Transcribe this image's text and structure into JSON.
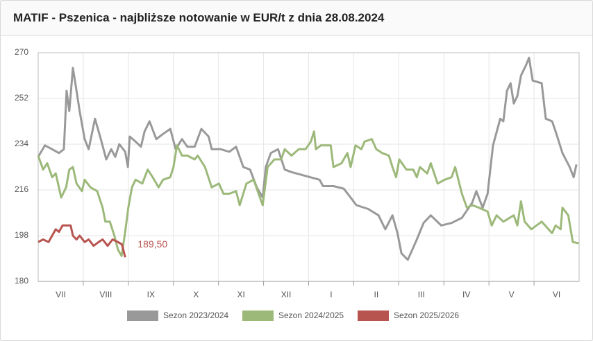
{
  "chart_data": {
    "type": "line",
    "title": "MATIF - Pszenica - najbliższe notowanie w EUR/t z dnia 28.08.2024",
    "xlim": [
      0,
      12
    ],
    "xticks": [
      {
        "value": 0.5,
        "label": "VII"
      },
      {
        "value": 1.5,
        "label": "VIII"
      },
      {
        "value": 2.5,
        "label": "IX"
      },
      {
        "value": 3.5,
        "label": "X"
      },
      {
        "value": 4.5,
        "label": "XI"
      },
      {
        "value": 5.5,
        "label": "XII"
      },
      {
        "value": 6.5,
        "label": "I"
      },
      {
        "value": 7.5,
        "label": "II"
      },
      {
        "value": 8.5,
        "label": "III"
      },
      {
        "value": 9.5,
        "label": "IV"
      },
      {
        "value": 10.5,
        "label": "V"
      },
      {
        "value": 11.5,
        "label": "VI"
      }
    ],
    "ylim": [
      180,
      270
    ],
    "yticks": [
      180,
      198,
      216,
      234,
      252,
      270
    ],
    "grid": true,
    "legend": "bottom",
    "series": [
      {
        "name": "Sezon 2023/2024",
        "color": "#999999",
        "x": [
          0.0,
          0.15,
          0.31,
          0.46,
          0.57,
          0.63,
          0.69,
          0.77,
          0.85,
          0.92,
          1.03,
          1.12,
          1.26,
          1.39,
          1.51,
          1.62,
          1.71,
          1.8,
          1.93,
          1.99,
          2.03,
          2.16,
          2.28,
          2.36,
          2.47,
          2.62,
          2.77,
          2.93,
          3.05,
          3.19,
          3.31,
          3.47,
          3.62,
          3.78,
          3.85,
          4.05,
          4.24,
          4.39,
          4.55,
          4.7,
          4.85,
          4.98,
          5.05,
          5.16,
          5.32,
          5.47,
          5.62,
          5.93,
          6.24,
          6.32,
          6.55,
          6.78,
          6.93,
          7.06,
          7.32,
          7.55,
          7.7,
          7.86,
          7.97,
          8.06,
          8.2,
          8.4,
          8.55,
          8.71,
          8.94,
          9.17,
          9.4,
          9.63,
          9.72,
          9.86,
          9.97,
          10.09,
          10.25,
          10.32,
          10.4,
          10.48,
          10.55,
          10.63,
          10.71,
          10.82,
          10.89,
          10.97,
          11.17,
          11.26,
          11.4,
          11.48,
          11.63,
          11.79,
          11.88,
          11.94
        ],
        "values": [
          229,
          233.5,
          232,
          230.5,
          232,
          255,
          247,
          264,
          255,
          247,
          236,
          232,
          244,
          236,
          228,
          232,
          229,
          234,
          231,
          225,
          237,
          235,
          233,
          239,
          243,
          236,
          238,
          240,
          232,
          236,
          233,
          233,
          240,
          237,
          232,
          232,
          231,
          233,
          225,
          224,
          217,
          213,
          225,
          230.5,
          232,
          224,
          223,
          221.5,
          220,
          217.5,
          217.5,
          216.5,
          213,
          210,
          208.5,
          206,
          200.5,
          206,
          199,
          191,
          188.5,
          196.5,
          203,
          206,
          202,
          203,
          205,
          211,
          215.5,
          209,
          214.5,
          233.5,
          244,
          243,
          255,
          258,
          250,
          253,
          261,
          265,
          268,
          259,
          258,
          244,
          243,
          239,
          230.5,
          225,
          221,
          226
        ]
      },
      {
        "name": "Sezon 2024/2025",
        "color": "#9cb97a",
        "x": [
          0.0,
          0.11,
          0.2,
          0.31,
          0.39,
          0.51,
          0.62,
          0.69,
          0.77,
          0.85,
          0.97,
          1.03,
          1.16,
          1.31,
          1.43,
          1.49,
          1.59,
          1.69,
          1.77,
          1.85,
          1.93,
          2.0,
          2.08,
          2.16,
          2.31,
          2.43,
          2.54,
          2.67,
          2.77,
          2.93,
          3.0,
          3.08,
          3.19,
          3.31,
          3.47,
          3.54,
          3.7,
          3.85,
          4.01,
          4.11,
          4.24,
          4.39,
          4.47,
          4.62,
          4.78,
          4.89,
          4.98,
          5.09,
          5.24,
          5.39,
          5.47,
          5.62,
          5.78,
          5.93,
          6.05,
          6.12,
          6.16,
          6.27,
          6.39,
          6.49,
          6.55,
          6.73,
          6.86,
          6.93,
          7.04,
          7.17,
          7.24,
          7.4,
          7.5,
          7.63,
          7.78,
          7.86,
          7.94,
          8.01,
          8.17,
          8.32,
          8.4,
          8.47,
          8.63,
          8.71,
          8.86,
          9.02,
          9.17,
          9.25,
          9.4,
          9.51,
          9.63,
          9.78,
          9.97,
          10.06,
          10.17,
          10.32,
          10.55,
          10.63,
          10.71,
          10.79,
          10.94,
          11.17,
          11.32,
          11.4,
          11.48,
          11.59,
          11.63,
          11.76,
          11.86,
          11.99
        ],
        "values": [
          229.5,
          224,
          226.5,
          221,
          222.5,
          213,
          217,
          224,
          225,
          218.5,
          215.5,
          220,
          217,
          215.5,
          209,
          203.5,
          203.5,
          198,
          192.5,
          190,
          199.5,
          209,
          217,
          220,
          218.5,
          224,
          221,
          217,
          220,
          221,
          225,
          233.5,
          229.5,
          229.5,
          228,
          229.5,
          225,
          217,
          218.5,
          214.5,
          214.5,
          215.5,
          210,
          218.5,
          220,
          214.5,
          210,
          225,
          228,
          228,
          232,
          229.5,
          232,
          232,
          235,
          239,
          232,
          233.5,
          233.5,
          233.5,
          225,
          226.5,
          230.5,
          225,
          233.5,
          232,
          235,
          236,
          232,
          230.5,
          229.5,
          225,
          221,
          228,
          224,
          224,
          221,
          225,
          222.5,
          226.5,
          218.5,
          220,
          221,
          225,
          214.5,
          209,
          210,
          209,
          207.5,
          202,
          206,
          203.5,
          206,
          202,
          211.5,
          203.5,
          200.5,
          203.5,
          200.5,
          199,
          202,
          200.5,
          209,
          206,
          195.5,
          195
        ]
      },
      {
        "name": "Sezon 2025/2026",
        "color": "#b85450",
        "x": [
          0.0,
          0.11,
          0.23,
          0.31,
          0.39,
          0.46,
          0.54,
          0.62,
          0.72,
          0.77,
          0.85,
          0.92,
          1.03,
          1.12,
          1.23,
          1.34,
          1.43,
          1.54,
          1.65,
          1.77,
          1.86,
          1.93
        ],
        "values": [
          195.5,
          196.5,
          195.5,
          198,
          200.5,
          199.5,
          202,
          202,
          202,
          198,
          196.5,
          198,
          195.5,
          196.5,
          194,
          195.5,
          196.5,
          194,
          196.5,
          195.5,
          194.5,
          189.5
        ]
      }
    ],
    "annotations": [
      {
        "text": "189,50"
      }
    ]
  }
}
